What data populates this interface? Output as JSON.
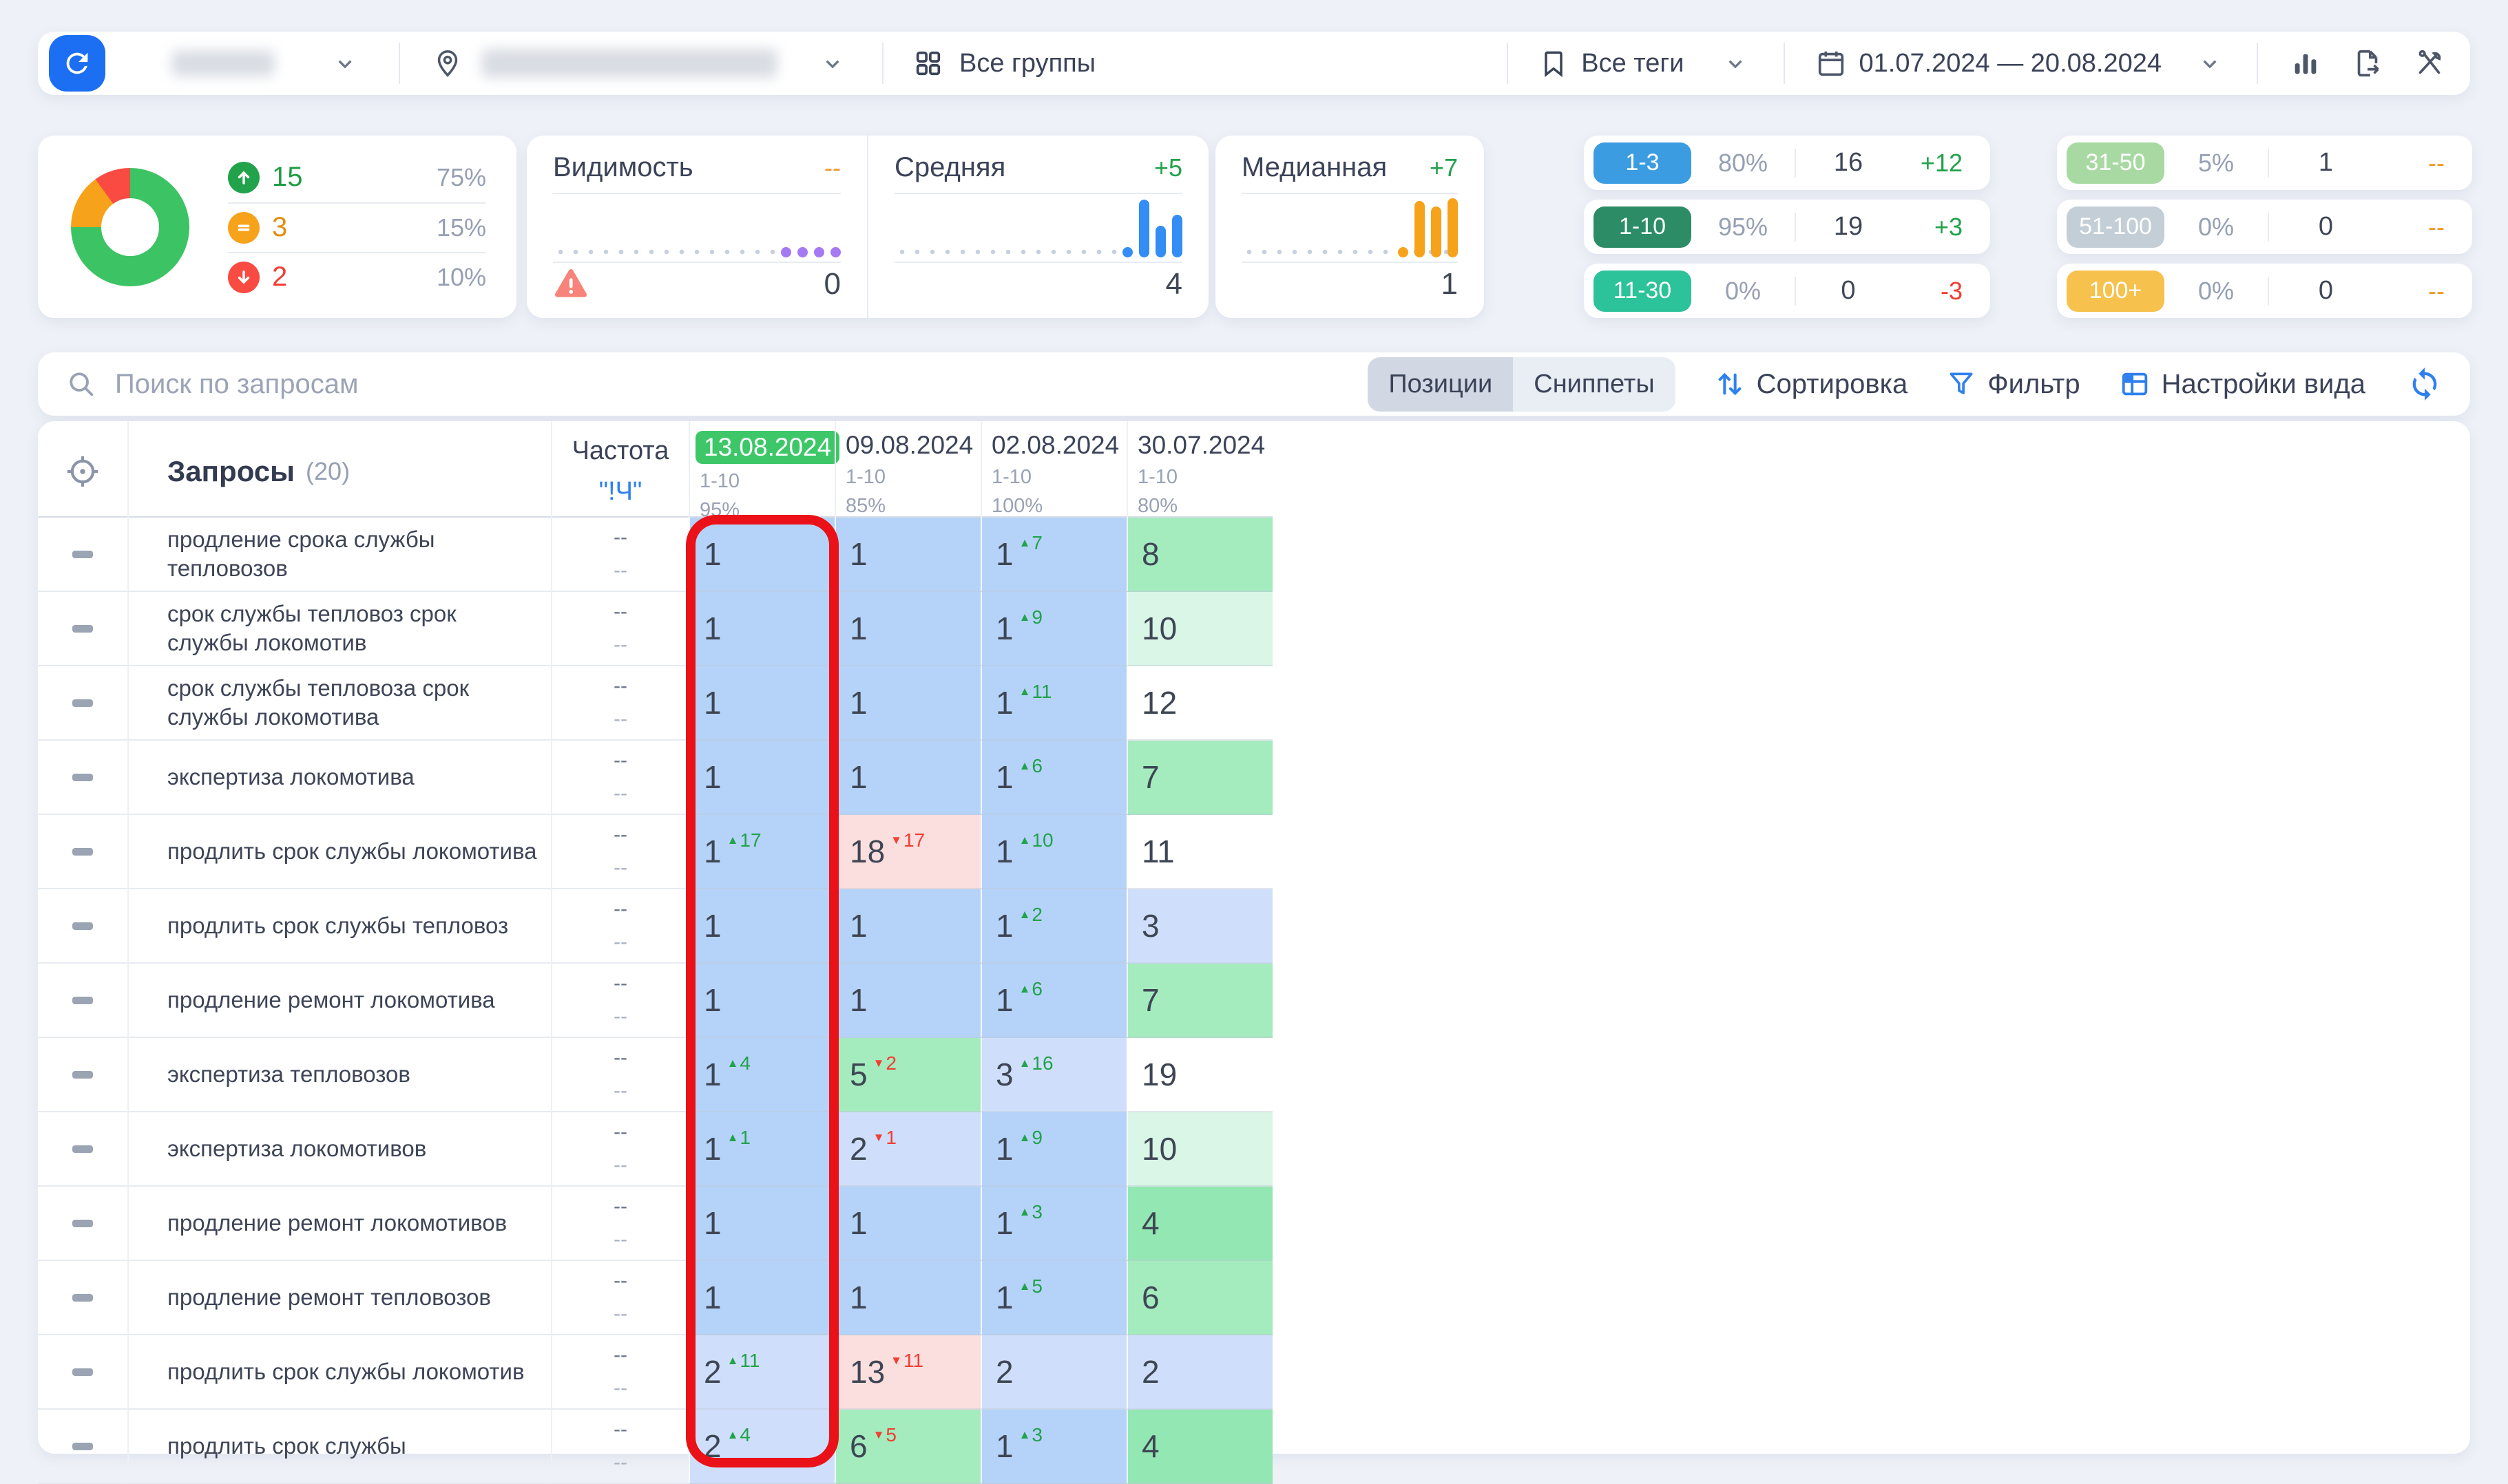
{
  "topbar": {
    "groups_label": "Все группы",
    "tags_label": "Все теги",
    "date_range": "01.07.2024 — 20.08.2024"
  },
  "summary": {
    "donut": {
      "up_pct": 75,
      "same_pct": 15,
      "down_pct": 10,
      "colors": {
        "up": "#3cc363",
        "same": "#f7a21b",
        "down": "#f94b42"
      }
    },
    "up": {
      "count": "15",
      "pct": "75%"
    },
    "same": {
      "count": "3",
      "pct": "15%"
    },
    "down": {
      "count": "2",
      "pct": "10%"
    }
  },
  "widgets": {
    "visibility": {
      "title": "Видимость",
      "change": "--",
      "value": "0"
    },
    "average": {
      "title": "Средняя",
      "change": "+5",
      "value": "4"
    },
    "median": {
      "title": "Медианная",
      "change": "+7",
      "value": "1"
    }
  },
  "ranges": [
    {
      "label": "1-3",
      "pct": "80%",
      "count": "16",
      "change": "+12",
      "dir": "up",
      "color": "#3b9ce2"
    },
    {
      "label": "1-10",
      "pct": "95%",
      "count": "19",
      "change": "+3",
      "dir": "up",
      "color": "#2c8c66"
    },
    {
      "label": "11-30",
      "pct": "0%",
      "count": "0",
      "change": "-3",
      "dir": "down",
      "color": "#2cc29a"
    },
    {
      "label": "31-50",
      "pct": "5%",
      "count": "1",
      "change": "--",
      "dir": "none",
      "color": "#a9d9a2"
    },
    {
      "label": "51-100",
      "pct": "0%",
      "count": "0",
      "change": "--",
      "dir": "none",
      "color": "#c3ced6"
    },
    {
      "label": "100+",
      "pct": "0%",
      "count": "0",
      "change": "--",
      "dir": "none",
      "color": "#f6c14c"
    }
  ],
  "toolbar": {
    "search_placeholder": "Поиск по запросам",
    "tabs": [
      {
        "label": "Позиции",
        "active": true
      },
      {
        "label": "Сниппеты",
        "active": false
      }
    ],
    "actions": [
      {
        "label": "Сортировка"
      },
      {
        "label": "Фильтр"
      },
      {
        "label": "Настройки вида"
      }
    ]
  },
  "table": {
    "queries_label": "Запросы",
    "queries_count": "(20)",
    "freq_label": "Частота",
    "freq_link": "\"!Ч\"",
    "columns": [
      {
        "date": "13.08.2024",
        "range": "1-10",
        "pct": "95%",
        "highlighted": true
      },
      {
        "date": "09.08.2024",
        "range": "1-10",
        "pct": "85%",
        "highlighted": false
      },
      {
        "date": "02.08.2024",
        "range": "1-10",
        "pct": "100%",
        "highlighted": false
      },
      {
        "date": "30.07.2024",
        "range": "1-10",
        "pct": "80%",
        "highlighted": false
      }
    ],
    "rows": [
      {
        "query": "продление срока службы тепловозов",
        "freq": [
          "--",
          "--"
        ],
        "cells": [
          {
            "v": "1",
            "bg": "blue"
          },
          {
            "v": "1",
            "bg": "blue"
          },
          {
            "v": "1",
            "d": "7",
            "dir": "up",
            "bg": "blue"
          },
          {
            "v": "8",
            "bg": "green"
          }
        ]
      },
      {
        "query": "срок службы тепловоз срок службы локомотив",
        "freq": [
          "--",
          "--"
        ],
        "cells": [
          {
            "v": "1",
            "bg": "blue"
          },
          {
            "v": "1",
            "bg": "blue"
          },
          {
            "v": "1",
            "d": "9",
            "dir": "up",
            "bg": "blue"
          },
          {
            "v": "10",
            "bg": "mint"
          }
        ]
      },
      {
        "query": "срок службы тепловоза срок службы локомотива",
        "freq": [
          "--",
          "--"
        ],
        "cells": [
          {
            "v": "1",
            "bg": "blue"
          },
          {
            "v": "1",
            "bg": "blue"
          },
          {
            "v": "1",
            "d": "11",
            "dir": "up",
            "bg": "blue"
          },
          {
            "v": "12",
            "bg": "white"
          }
        ]
      },
      {
        "query": "экспертиза локомотива",
        "freq": [
          "--",
          "--"
        ],
        "cells": [
          {
            "v": "1",
            "bg": "blue"
          },
          {
            "v": "1",
            "bg": "blue"
          },
          {
            "v": "1",
            "d": "6",
            "dir": "up",
            "bg": "blue"
          },
          {
            "v": "7",
            "bg": "green"
          }
        ]
      },
      {
        "query": "продлить срок службы локомотива",
        "freq": [
          "--",
          "--"
        ],
        "cells": [
          {
            "v": "1",
            "d": "17",
            "dir": "up",
            "bg": "blue"
          },
          {
            "v": "18",
            "d": "17",
            "dir": "down",
            "bg": "pink"
          },
          {
            "v": "1",
            "d": "10",
            "dir": "up",
            "bg": "blue"
          },
          {
            "v": "11",
            "bg": "white"
          }
        ]
      },
      {
        "query": "продлить срок службы тепловоз",
        "freq": [
          "--",
          "--"
        ],
        "cells": [
          {
            "v": "1",
            "bg": "blue"
          },
          {
            "v": "1",
            "bg": "blue"
          },
          {
            "v": "1",
            "d": "2",
            "dir": "up",
            "bg": "blue"
          },
          {
            "v": "3",
            "bg": "blue2"
          }
        ]
      },
      {
        "query": "продление ремонт локомотива",
        "freq": [
          "--",
          "--"
        ],
        "cells": [
          {
            "v": "1",
            "bg": "blue"
          },
          {
            "v": "1",
            "bg": "blue"
          },
          {
            "v": "1",
            "d": "6",
            "dir": "up",
            "bg": "blue"
          },
          {
            "v": "7",
            "bg": "green"
          }
        ]
      },
      {
        "query": "экспертиза тепловозов",
        "freq": [
          "--",
          "--"
        ],
        "cells": [
          {
            "v": "1",
            "d": "4",
            "dir": "up",
            "bg": "blue"
          },
          {
            "v": "5",
            "d": "2",
            "dir": "down",
            "bg": "green"
          },
          {
            "v": "3",
            "d": "16",
            "dir": "up",
            "bg": "blue2"
          },
          {
            "v": "19",
            "bg": "white"
          }
        ]
      },
      {
        "query": "экспертиза локомотивов",
        "freq": [
          "--",
          "--"
        ],
        "cells": [
          {
            "v": "1",
            "d": "1",
            "dir": "up",
            "bg": "blue"
          },
          {
            "v": "2",
            "d": "1",
            "dir": "down",
            "bg": "blue2"
          },
          {
            "v": "1",
            "d": "9",
            "dir": "up",
            "bg": "blue"
          },
          {
            "v": "10",
            "bg": "mint"
          }
        ]
      },
      {
        "query": "продление ремонт локомотивов",
        "freq": [
          "--",
          "--"
        ],
        "cells": [
          {
            "v": "1",
            "bg": "blue"
          },
          {
            "v": "1",
            "bg": "blue"
          },
          {
            "v": "1",
            "d": "3",
            "dir": "up",
            "bg": "blue"
          },
          {
            "v": "4",
            "bg": "green2"
          }
        ]
      },
      {
        "query": "продление ремонт тепловозов",
        "freq": [
          "--",
          "--"
        ],
        "cells": [
          {
            "v": "1",
            "bg": "blue"
          },
          {
            "v": "1",
            "bg": "blue"
          },
          {
            "v": "1",
            "d": "5",
            "dir": "up",
            "bg": "blue"
          },
          {
            "v": "6",
            "bg": "green"
          }
        ]
      },
      {
        "query": "продлить срок службы локомотив",
        "freq": [
          "--",
          "--"
        ],
        "cells": [
          {
            "v": "2",
            "d": "11",
            "dir": "up",
            "bg": "blue2"
          },
          {
            "v": "13",
            "d": "11",
            "dir": "down",
            "bg": "pink"
          },
          {
            "v": "2",
            "bg": "blue2"
          },
          {
            "v": "2",
            "bg": "blue2"
          }
        ]
      },
      {
        "query": "продлить срок службы",
        "freq": [
          "--",
          "--"
        ],
        "cells": [
          {
            "v": "2",
            "d": "4",
            "dir": "up",
            "bg": "blue2"
          },
          {
            "v": "6",
            "d": "5",
            "dir": "down",
            "bg": "green"
          },
          {
            "v": "1",
            "d": "3",
            "dir": "up",
            "bg": "blue"
          },
          {
            "v": "4",
            "bg": "green2"
          }
        ]
      }
    ]
  },
  "annotation": {
    "target_column": "13.08.2024",
    "color": "#ea1118"
  },
  "icons": {
    "refresh-icon": "circular arrows",
    "location-pin-icon": "map pin",
    "groups-grid-icon": "2x2 squares",
    "chevron-down-icon": "∨",
    "tags-bookmark-icon": "bookmark",
    "calendar-icon": "calendar",
    "chart-icon": "vertical bars",
    "export-icon": "file with arrow",
    "tools-icon": "crossed tools",
    "search-icon": "magnifier",
    "target-icon": "crosshair",
    "sort-icon": "up/down arrows",
    "filter-icon": "funnel",
    "view-settings-icon": "table grid",
    "sync-icon": "sync arrows",
    "warning-icon": "red triangle !",
    "arrow-up-icon": "↑",
    "equals-icon": "=",
    "arrow-down-icon": "↓",
    "drag-handle": "dash"
  }
}
